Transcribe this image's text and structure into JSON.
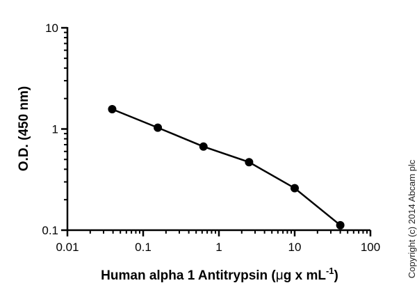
{
  "chart_data": {
    "type": "line",
    "title": "",
    "xlabel": {
      "main": "Human alpha 1 Antitrypsin (",
      "mu": "μ",
      "rest": "g x mL",
      "sup": "-1",
      "close": ")"
    },
    "ylabel": "O.D. (450 nm)",
    "xscale": "log",
    "yscale": "log",
    "xlim": [
      0.01,
      100
    ],
    "ylim": [
      0.1,
      10
    ],
    "grid": false,
    "legend": "none",
    "x_tick_labels": [
      "0.01",
      "0.1",
      "1",
      "10",
      "100"
    ],
    "y_tick_labels": [
      "0.1",
      "1",
      "10"
    ],
    "series": [
      {
        "x": [
          0.039,
          0.156,
          0.625,
          2.5,
          10,
          40
        ],
        "y": [
          1.57,
          1.03,
          0.67,
          0.47,
          0.26,
          0.112
        ],
        "color": "#000000",
        "marker": "circle"
      }
    ]
  },
  "copyright": "Copyright (c) 2014 Abcam plc"
}
